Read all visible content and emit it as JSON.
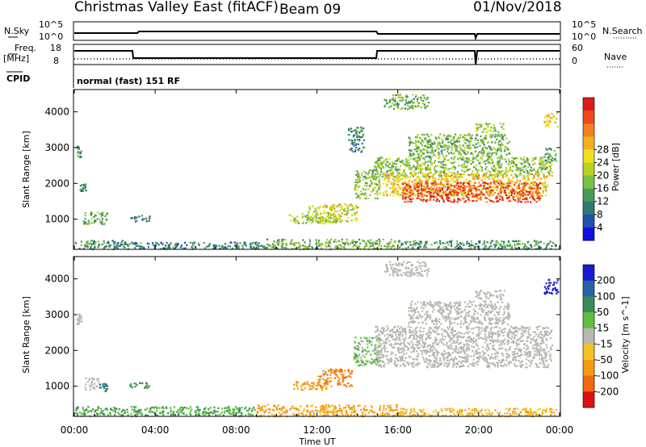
{
  "header": {
    "title": "Christmas Valley East (fitACF)",
    "beam": "Beam 09",
    "date": "01/Nov/2018",
    "mode": "normal (fast) 151 RF"
  },
  "status_panels": {
    "nsky_label": "N.Sky",
    "nsearch_label": "N.Search",
    "freq_label": "Freq.",
    "freq_unit": "[MHz]",
    "nave_label": "Nave",
    "cpid_label": "CPID",
    "noise_ticks": [
      "10^5",
      "10^0"
    ],
    "noise_right_ticks": [
      "10^5",
      "10^0"
    ],
    "freq_ticks": [
      "18",
      "8"
    ],
    "nave_ticks": [
      "60",
      "0"
    ]
  },
  "chart_data": [
    {
      "type": "heatmap",
      "title": "Power",
      "ylabel": "Slant Range [km]",
      "xlabel": "",
      "ylim": [
        180,
        4600
      ],
      "yticks": [
        "1000",
        "2000",
        "3000",
        "4000"
      ],
      "colorbar_label": "Power [dB]",
      "colorbar_ticks": [
        "4",
        "8",
        "12",
        "16",
        "20",
        "24",
        "28"
      ],
      "colorbar_colors": [
        "#1010e0",
        "#2050b0",
        "#2e7a70",
        "#4a9a5a",
        "#7cc040",
        "#b8d020",
        "#f0e020",
        "#f5b020",
        "#f58020",
        "#f04818",
        "#e01818"
      ],
      "regions": [
        {
          "t0": 0.02,
          "t1": 2.4,
          "r0": 180,
          "r1": 430,
          "value": 10
        },
        {
          "t0": 2.4,
          "t1": 9.5,
          "r0": 180,
          "r1": 380,
          "value": 9
        },
        {
          "t0": 9.5,
          "t1": 16.0,
          "r0": 180,
          "r1": 460,
          "value": 13
        },
        {
          "t0": 16.0,
          "t1": 23.8,
          "r0": 180,
          "r1": 420,
          "value": 11
        },
        {
          "t0": 0.1,
          "t1": 0.35,
          "r0": 2750,
          "r1": 3050,
          "value": 11
        },
        {
          "t0": 0.25,
          "t1": 0.55,
          "r0": 1800,
          "r1": 2000,
          "value": 9
        },
        {
          "t0": 0.4,
          "t1": 1.6,
          "r0": 880,
          "r1": 1220,
          "value": 12
        },
        {
          "t0": 2.7,
          "t1": 3.7,
          "r0": 950,
          "r1": 1120,
          "value": 8
        },
        {
          "t0": 10.6,
          "t1": 13.0,
          "r0": 900,
          "r1": 1200,
          "value": 15
        },
        {
          "t0": 11.5,
          "t1": 14.0,
          "r0": 950,
          "r1": 1450,
          "value": 17
        },
        {
          "t0": 13.8,
          "t1": 15.1,
          "r0": 1600,
          "r1": 2400,
          "value": 14
        },
        {
          "t0": 13.5,
          "t1": 14.3,
          "r0": 2900,
          "r1": 3600,
          "value": 9
        },
        {
          "t0": 14.8,
          "t1": 23.6,
          "r0": 2200,
          "r1": 2750,
          "value": 14
        },
        {
          "t0": 15.2,
          "t1": 23.4,
          "r0": 1650,
          "r1": 2300,
          "value": 20
        },
        {
          "t0": 16.2,
          "t1": 23.0,
          "r0": 1500,
          "r1": 2050,
          "value": 27
        },
        {
          "t0": 16.5,
          "t1": 21.5,
          "r0": 2750,
          "r1": 3400,
          "value": 13
        },
        {
          "t0": 19.8,
          "t1": 21.3,
          "r0": 3450,
          "r1": 3700,
          "value": 15
        },
        {
          "t0": 15.3,
          "t1": 17.5,
          "r0": 4100,
          "r1": 4500,
          "value": 12
        },
        {
          "t0": 23.2,
          "t1": 23.9,
          "r0": 3600,
          "r1": 4000,
          "value": 20
        },
        {
          "t0": 23.2,
          "t1": 23.8,
          "r0": 2600,
          "r1": 3000,
          "value": 11
        }
      ]
    },
    {
      "type": "heatmap",
      "title": "Velocity",
      "ylabel": "Slant Range [km]",
      "xlabel": "Time UT",
      "ylim": [
        180,
        4600
      ],
      "yticks": [
        "1000",
        "2000",
        "3000",
        "4000"
      ],
      "xticks": [
        "00:00",
        "04:00",
        "08:00",
        "12:00",
        "16:00",
        "20:00",
        "00:00"
      ],
      "colorbar_label": "Velocity [m s^-1]",
      "colorbar_ticks": [
        "200",
        "100",
        "50",
        "15",
        "-15",
        "-50",
        "-100",
        "-200"
      ],
      "colorbar_colors": [
        "#1a1ad0",
        "#2a60a8",
        "#3c8a5a",
        "#5ec040",
        "#b8b8b0",
        "#f5c020",
        "#f59a10",
        "#f06a10",
        "#e01010"
      ],
      "regions": [
        {
          "t0": 0.02,
          "t1": 9.0,
          "r0": 180,
          "r1": 450,
          "value": 30
        },
        {
          "t0": 9.0,
          "t1": 16.0,
          "r0": 180,
          "r1": 500,
          "value": -40
        },
        {
          "t0": 16.0,
          "t1": 23.8,
          "r0": 180,
          "r1": 400,
          "value": -30
        },
        {
          "t0": 0.1,
          "t1": 0.35,
          "r0": 2750,
          "r1": 3050,
          "value": 0
        },
        {
          "t0": 0.5,
          "t1": 1.2,
          "r0": 900,
          "r1": 1250,
          "value": 0
        },
        {
          "t0": 1.2,
          "t1": 1.6,
          "r0": 880,
          "r1": 1100,
          "value": 70
        },
        {
          "t0": 2.7,
          "t1": 3.7,
          "r0": 950,
          "r1": 1120,
          "value": 40
        },
        {
          "t0": 10.8,
          "t1": 12.5,
          "r0": 900,
          "r1": 1150,
          "value": -60
        },
        {
          "t0": 12.0,
          "t1": 13.7,
          "r0": 1000,
          "r1": 1500,
          "value": -70
        },
        {
          "t0": 13.8,
          "t1": 15.1,
          "r0": 1600,
          "r1": 2400,
          "value": 20
        },
        {
          "t0": 14.8,
          "t1": 23.6,
          "r0": 1550,
          "r1": 2700,
          "value": 0
        },
        {
          "t0": 16.5,
          "t1": 21.5,
          "r0": 2750,
          "r1": 3400,
          "value": 0
        },
        {
          "t0": 15.3,
          "t1": 17.5,
          "r0": 4100,
          "r1": 4500,
          "value": 0
        },
        {
          "t0": 19.8,
          "t1": 21.3,
          "r0": 3450,
          "r1": 3700,
          "value": 0
        },
        {
          "t0": 23.2,
          "t1": 23.9,
          "r0": 3600,
          "r1": 4000,
          "value": 220
        }
      ]
    }
  ]
}
